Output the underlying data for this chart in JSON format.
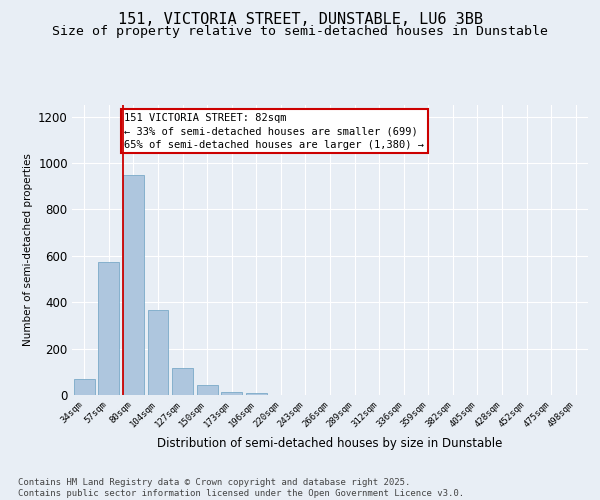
{
  "title_line1": "151, VICTORIA STREET, DUNSTABLE, LU6 3BB",
  "title_line2": "Size of property relative to semi-detached houses in Dunstable",
  "xlabel": "Distribution of semi-detached houses by size in Dunstable",
  "ylabel": "Number of semi-detached properties",
  "categories": [
    "34sqm",
    "57sqm",
    "80sqm",
    "104sqm",
    "127sqm",
    "150sqm",
    "173sqm",
    "196sqm",
    "220sqm",
    "243sqm",
    "266sqm",
    "289sqm",
    "312sqm",
    "336sqm",
    "359sqm",
    "382sqm",
    "405sqm",
    "428sqm",
    "452sqm",
    "475sqm",
    "498sqm"
  ],
  "values": [
    70,
    575,
    950,
    365,
    115,
    45,
    15,
    8,
    0,
    0,
    0,
    0,
    0,
    0,
    0,
    0,
    0,
    0,
    0,
    0,
    0
  ],
  "bar_color": "#aec6de",
  "bar_edge_color": "#7aaac8",
  "vline_color": "#cc0000",
  "annotation_text": "151 VICTORIA STREET: 82sqm\n← 33% of semi-detached houses are smaller (699)\n65% of semi-detached houses are larger (1,380) →",
  "annotation_box_color": "#ffffff",
  "annotation_box_edge_color": "#cc0000",
  "ylim": [
    0,
    1250
  ],
  "yticks": [
    0,
    200,
    400,
    600,
    800,
    1000,
    1200
  ],
  "bg_color": "#e8eef5",
  "plot_bg_color": "#e8eef5",
  "footer_text": "Contains HM Land Registry data © Crown copyright and database right 2025.\nContains public sector information licensed under the Open Government Licence v3.0.",
  "title_fontsize": 11,
  "subtitle_fontsize": 9.5,
  "annotation_fontsize": 7.5,
  "footer_fontsize": 6.5,
  "ylabel_fontsize": 7.5,
  "xlabel_fontsize": 8.5
}
